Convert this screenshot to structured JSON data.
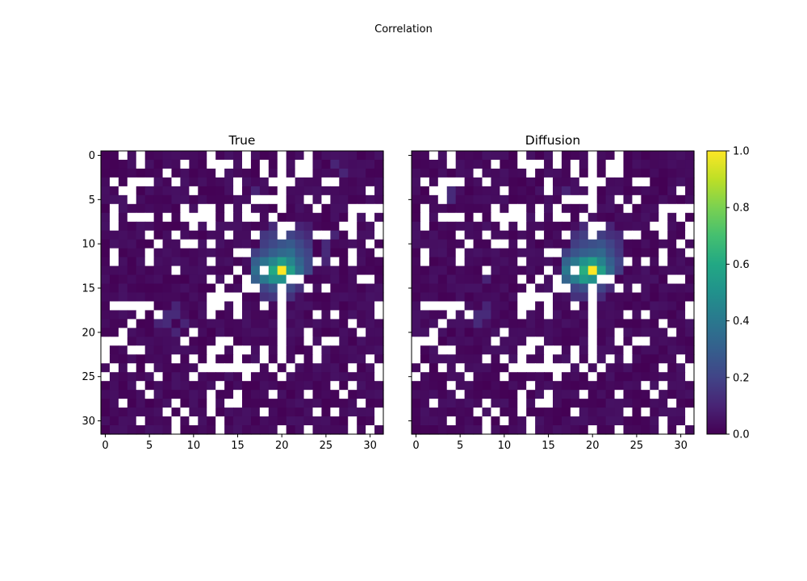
{
  "figure": {
    "suptitle": "Correlation"
  },
  "chart_data": {
    "type": "heatmap",
    "grid_size": 32,
    "masked_value_color": "#ffffff",
    "colormap": "viridis",
    "clim": [
      0.0,
      1.0
    ],
    "colorbar": {
      "ticks": [
        "0.0",
        "0.2",
        "0.4",
        "0.6",
        "0.8",
        "1.0"
      ]
    },
    "x_ticks": [
      "0",
      "5",
      "10",
      "15",
      "20",
      "25",
      "30"
    ],
    "y_ticks": [
      "0",
      "5",
      "10",
      "15",
      "20",
      "25",
      "30"
    ],
    "peak": {
      "row": 13,
      "col": 20,
      "value": 1.0
    },
    "masked_cells": [
      [
        0,
        2
      ],
      [
        0,
        4
      ],
      [
        0,
        12
      ],
      [
        0,
        16
      ],
      [
        0,
        20
      ],
      [
        0,
        23
      ],
      [
        1,
        4
      ],
      [
        1,
        9
      ],
      [
        1,
        12
      ],
      [
        1,
        13
      ],
      [
        1,
        14
      ],
      [
        1,
        16
      ],
      [
        1,
        18
      ],
      [
        1,
        20
      ],
      [
        1,
        22
      ],
      [
        1,
        23
      ],
      [
        2,
        7
      ],
      [
        2,
        13
      ],
      [
        2,
        18
      ],
      [
        2,
        20
      ],
      [
        2,
        22
      ],
      [
        2,
        23
      ],
      [
        3,
        1
      ],
      [
        3,
        3
      ],
      [
        3,
        4
      ],
      [
        3,
        5
      ],
      [
        3,
        8
      ],
      [
        3,
        15
      ],
      [
        3,
        19
      ],
      [
        3,
        20
      ],
      [
        3,
        21
      ],
      [
        3,
        25
      ],
      [
        3,
        26
      ],
      [
        4,
        2
      ],
      [
        4,
        3
      ],
      [
        4,
        10
      ],
      [
        4,
        15
      ],
      [
        4,
        20
      ],
      [
        4,
        30
      ],
      [
        5,
        3
      ],
      [
        5,
        17
      ],
      [
        5,
        18
      ],
      [
        5,
        19
      ],
      [
        5,
        20
      ],
      [
        5,
        23
      ],
      [
        5,
        25
      ],
      [
        6,
        1
      ],
      [
        6,
        9
      ],
      [
        6,
        11
      ],
      [
        6,
        12
      ],
      [
        6,
        14
      ],
      [
        6,
        16
      ],
      [
        6,
        20
      ],
      [
        6,
        24
      ],
      [
        6,
        28
      ],
      [
        6,
        29
      ],
      [
        6,
        30
      ],
      [
        6,
        31
      ],
      [
        7,
        1
      ],
      [
        7,
        3
      ],
      [
        7,
        4
      ],
      [
        7,
        5
      ],
      [
        7,
        7
      ],
      [
        7,
        9
      ],
      [
        7,
        10
      ],
      [
        7,
        11
      ],
      [
        7,
        12
      ],
      [
        7,
        14
      ],
      [
        7,
        16
      ],
      [
        7,
        17
      ],
      [
        7,
        19
      ],
      [
        7,
        28
      ],
      [
        7,
        30
      ],
      [
        8,
        1
      ],
      [
        8,
        10
      ],
      [
        8,
        12
      ],
      [
        8,
        20
      ],
      [
        8,
        21
      ],
      [
        8,
        27
      ],
      [
        8,
        28
      ],
      [
        8,
        31
      ],
      [
        9,
        5
      ],
      [
        9,
        8
      ],
      [
        9,
        14
      ],
      [
        9,
        17
      ],
      [
        9,
        20
      ],
      [
        9,
        24
      ],
      [
        9,
        25
      ],
      [
        9,
        28
      ],
      [
        9,
        31
      ],
      [
        10,
        6
      ],
      [
        10,
        9
      ],
      [
        10,
        10
      ],
      [
        10,
        12
      ],
      [
        10,
        30
      ],
      [
        11,
        1
      ],
      [
        11,
        5
      ],
      [
        11,
        15
      ],
      [
        11,
        16
      ],
      [
        11,
        28
      ],
      [
        11,
        31
      ],
      [
        12,
        1
      ],
      [
        12,
        5
      ],
      [
        12,
        12
      ],
      [
        12,
        24
      ],
      [
        12,
        26
      ],
      [
        12,
        28
      ],
      [
        13,
        8
      ],
      [
        13,
        15
      ],
      [
        13,
        18
      ],
      [
        14,
        12
      ],
      [
        14,
        14
      ],
      [
        14,
        16
      ],
      [
        14,
        21
      ],
      [
        14,
        22
      ],
      [
        14,
        29
      ],
      [
        14,
        30
      ],
      [
        15,
        13
      ],
      [
        15,
        16
      ],
      [
        15,
        17
      ],
      [
        15,
        20
      ],
      [
        15,
        23
      ],
      [
        15,
        25
      ],
      [
        16,
        12
      ],
      [
        16,
        13
      ],
      [
        16,
        14
      ],
      [
        16,
        15
      ],
      [
        16,
        20
      ],
      [
        17,
        1
      ],
      [
        17,
        2
      ],
      [
        17,
        3
      ],
      [
        17,
        4
      ],
      [
        17,
        5
      ],
      [
        17,
        12
      ],
      [
        17,
        13
      ],
      [
        17,
        15
      ],
      [
        17,
        18
      ],
      [
        17,
        20
      ],
      [
        17,
        31
      ],
      [
        18,
        4
      ],
      [
        18,
        6
      ],
      [
        18,
        12
      ],
      [
        18,
        15
      ],
      [
        18,
        20
      ],
      [
        18,
        24
      ],
      [
        18,
        26
      ],
      [
        18,
        31
      ],
      [
        19,
        3
      ],
      [
        19,
        20
      ],
      [
        19,
        28
      ],
      [
        20,
        2
      ],
      [
        20,
        10
      ],
      [
        20,
        20
      ],
      [
        20,
        23
      ],
      [
        20,
        29
      ],
      [
        21,
        0
      ],
      [
        21,
        1
      ],
      [
        21,
        2
      ],
      [
        21,
        9
      ],
      [
        21,
        13
      ],
      [
        21,
        14
      ],
      [
        21,
        20
      ],
      [
        21,
        23
      ],
      [
        21,
        25
      ],
      [
        21,
        26
      ],
      [
        22,
        0
      ],
      [
        22,
        3
      ],
      [
        22,
        4
      ],
      [
        22,
        12
      ],
      [
        22,
        13
      ],
      [
        22,
        15
      ],
      [
        22,
        16
      ],
      [
        22,
        18
      ],
      [
        22,
        20
      ],
      [
        22,
        24
      ],
      [
        23,
        0
      ],
      [
        23,
        8
      ],
      [
        23,
        10
      ],
      [
        23,
        12
      ],
      [
        23,
        15
      ],
      [
        23,
        18
      ],
      [
        23,
        20
      ],
      [
        23,
        22
      ],
      [
        23,
        24
      ],
      [
        23,
        30
      ],
      [
        24,
        1
      ],
      [
        24,
        3
      ],
      [
        24,
        5
      ],
      [
        24,
        11
      ],
      [
        24,
        12
      ],
      [
        24,
        13
      ],
      [
        24,
        14
      ],
      [
        24,
        15
      ],
      [
        24,
        16
      ],
      [
        24,
        17
      ],
      [
        24,
        19
      ],
      [
        24,
        21
      ],
      [
        24,
        28
      ],
      [
        24,
        31
      ],
      [
        25,
        0
      ],
      [
        25,
        6
      ],
      [
        25,
        10
      ],
      [
        25,
        16
      ],
      [
        25,
        20
      ],
      [
        25,
        31
      ],
      [
        26,
        4
      ],
      [
        26,
        13
      ],
      [
        26,
        26
      ],
      [
        26,
        28
      ],
      [
        27,
        5
      ],
      [
        27,
        12
      ],
      [
        27,
        15
      ],
      [
        27,
        19
      ],
      [
        27,
        23
      ],
      [
        27,
        27
      ],
      [
        28,
        2
      ],
      [
        28,
        8
      ],
      [
        28,
        12
      ],
      [
        28,
        14
      ],
      [
        28,
        15
      ],
      [
        28,
        29
      ],
      [
        29,
        7
      ],
      [
        29,
        9
      ],
      [
        29,
        12
      ],
      [
        29,
        18
      ],
      [
        29,
        24
      ],
      [
        29,
        26
      ],
      [
        29,
        31
      ],
      [
        30,
        4
      ],
      [
        30,
        8
      ],
      [
        30,
        10
      ],
      [
        30,
        13
      ],
      [
        30,
        28
      ],
      [
        30,
        31
      ],
      [
        31,
        8
      ],
      [
        31,
        13
      ],
      [
        31,
        20
      ],
      [
        31,
        23
      ],
      [
        31,
        28
      ],
      [
        31,
        30
      ]
    ],
    "panels": [
      {
        "title": "True",
        "hotspot": [
          [
            8,
            19,
            0.12
          ],
          [
            8,
            20,
            0.16
          ],
          [
            8,
            21,
            0.12
          ],
          [
            8,
            22,
            0.1
          ],
          [
            8,
            23,
            0.08
          ],
          [
            9,
            18,
            0.16
          ],
          [
            9,
            19,
            0.18
          ],
          [
            9,
            21,
            0.2
          ],
          [
            9,
            22,
            0.16
          ],
          [
            9,
            23,
            0.12
          ],
          [
            10,
            18,
            0.18
          ],
          [
            10,
            19,
            0.22
          ],
          [
            10,
            20,
            0.26
          ],
          [
            10,
            21,
            0.28
          ],
          [
            10,
            22,
            0.22
          ],
          [
            10,
            23,
            0.16
          ],
          [
            11,
            17,
            0.18
          ],
          [
            11,
            18,
            0.24
          ],
          [
            11,
            19,
            0.3
          ],
          [
            11,
            20,
            0.34
          ],
          [
            11,
            21,
            0.36
          ],
          [
            11,
            22,
            0.26
          ],
          [
            11,
            23,
            0.2
          ],
          [
            12,
            17,
            0.3
          ],
          [
            12,
            18,
            0.38
          ],
          [
            12,
            19,
            0.45
          ],
          [
            12,
            20,
            0.55
          ],
          [
            12,
            21,
            0.45
          ],
          [
            12,
            22,
            0.32
          ],
          [
            12,
            23,
            0.22
          ],
          [
            13,
            17,
            0.36
          ],
          [
            13,
            18,
            0.5
          ],
          [
            13,
            19,
            0.6
          ],
          [
            13,
            20,
            1.0
          ],
          [
            13,
            21,
            0.56
          ],
          [
            13,
            22,
            0.36
          ],
          [
            13,
            23,
            0.22
          ],
          [
            14,
            17,
            0.3
          ],
          [
            14,
            18,
            0.4
          ],
          [
            14,
            19,
            0.5
          ],
          [
            14,
            20,
            0.5
          ],
          [
            15,
            18,
            0.2
          ],
          [
            15,
            19,
            0.26
          ],
          [
            15,
            21,
            0.22
          ],
          [
            15,
            22,
            0.14
          ],
          [
            16,
            18,
            0.14
          ],
          [
            16,
            19,
            0.16
          ],
          [
            16,
            21,
            0.14
          ],
          [
            10,
            25,
            0.12
          ],
          [
            11,
            25,
            0.12
          ],
          [
            12,
            25,
            0.1
          ],
          [
            9,
            26,
            0.1
          ],
          [
            18,
            7,
            0.12
          ],
          [
            18,
            8,
            0.12
          ],
          [
            19,
            6,
            0.1
          ],
          [
            19,
            7,
            0.12
          ],
          [
            19,
            9,
            0.1
          ],
          [
            20,
            8,
            0.1
          ],
          [
            17,
            8,
            0.1
          ],
          [
            4,
            17,
            0.1
          ],
          [
            1,
            26,
            0.1
          ],
          [
            2,
            27,
            0.1
          ]
        ]
      },
      {
        "title": "Diffusion",
        "hotspot": [
          [
            8,
            19,
            0.12
          ],
          [
            8,
            20,
            0.14
          ],
          [
            8,
            21,
            0.12
          ],
          [
            8,
            22,
            0.1
          ],
          [
            9,
            18,
            0.14
          ],
          [
            9,
            19,
            0.18
          ],
          [
            9,
            21,
            0.18
          ],
          [
            9,
            22,
            0.14
          ],
          [
            9,
            23,
            0.12
          ],
          [
            10,
            18,
            0.18
          ],
          [
            10,
            19,
            0.22
          ],
          [
            10,
            20,
            0.24
          ],
          [
            10,
            21,
            0.26
          ],
          [
            10,
            22,
            0.2
          ],
          [
            10,
            23,
            0.14
          ],
          [
            11,
            17,
            0.18
          ],
          [
            11,
            18,
            0.26
          ],
          [
            11,
            19,
            0.3
          ],
          [
            11,
            20,
            0.32
          ],
          [
            11,
            21,
            0.34
          ],
          [
            11,
            22,
            0.24
          ],
          [
            11,
            23,
            0.16
          ],
          [
            12,
            17,
            0.32
          ],
          [
            12,
            18,
            0.4
          ],
          [
            12,
            19,
            0.5
          ],
          [
            12,
            20,
            0.56
          ],
          [
            12,
            21,
            0.44
          ],
          [
            12,
            22,
            0.3
          ],
          [
            12,
            23,
            0.2
          ],
          [
            13,
            17,
            0.4
          ],
          [
            13,
            18,
            0.52
          ],
          [
            13,
            19,
            0.62
          ],
          [
            13,
            20,
            1.0
          ],
          [
            13,
            21,
            0.56
          ],
          [
            13,
            22,
            0.34
          ],
          [
            13,
            23,
            0.18
          ],
          [
            14,
            17,
            0.32
          ],
          [
            14,
            18,
            0.42
          ],
          [
            14,
            19,
            0.54
          ],
          [
            14,
            20,
            0.5
          ],
          [
            15,
            18,
            0.2
          ],
          [
            15,
            19,
            0.24
          ],
          [
            15,
            21,
            0.2
          ],
          [
            15,
            22,
            0.12
          ],
          [
            16,
            18,
            0.14
          ],
          [
            16,
            19,
            0.14
          ],
          [
            16,
            21,
            0.12
          ],
          [
            18,
            7,
            0.12
          ],
          [
            18,
            8,
            0.12
          ],
          [
            19,
            7,
            0.12
          ],
          [
            17,
            8,
            0.1
          ],
          [
            4,
            4,
            0.12
          ],
          [
            5,
            4,
            0.12
          ],
          [
            14,
            8,
            0.1
          ],
          [
            4,
            17,
            0.1
          ]
        ]
      }
    ]
  }
}
